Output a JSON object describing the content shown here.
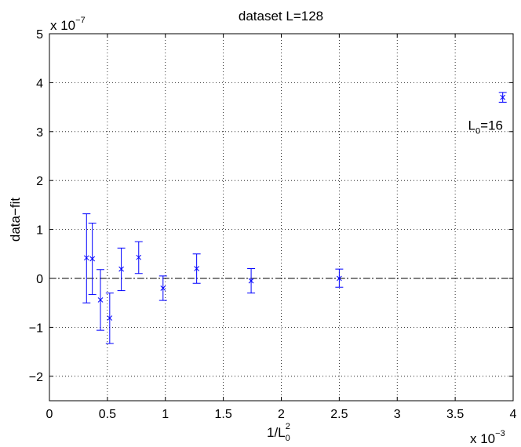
{
  "chart_data": {
    "type": "scatter",
    "title": "dataset L=128",
    "xlabel": {
      "text": "1/L",
      "sub": "0",
      "sup": "2"
    },
    "ylabel": "data−fit",
    "x_multiplier": {
      "base": "x 10",
      "exp": "−3"
    },
    "y_multiplier": {
      "base": "x 10",
      "exp": "−7"
    },
    "xlim": [
      0,
      4
    ],
    "ylim": [
      -2.5,
      5
    ],
    "xticks": [
      0,
      0.5,
      1,
      1.5,
      2,
      2.5,
      3,
      3.5,
      4
    ],
    "xtick_labels": [
      "0",
      "0.5",
      "1",
      "1.5",
      "2",
      "2.5",
      "3",
      "3.5",
      "4"
    ],
    "yticks": [
      -2,
      -1,
      0,
      1,
      2,
      3,
      4,
      5
    ],
    "ytick_labels": [
      "−2",
      "−1",
      "0",
      "1",
      "2",
      "3",
      "4",
      "5"
    ],
    "grid": true,
    "reference_line": {
      "y": 0,
      "style": "dash-dot",
      "color": "#000000"
    },
    "marker_color": "#0000ff",
    "marker": "x",
    "points": [
      {
        "x": 0.32,
        "y": 0.42,
        "err_lo": -0.5,
        "err_hi": 1.32
      },
      {
        "x": 0.37,
        "y": 0.4,
        "err_lo": -0.33,
        "err_hi": 1.13
      },
      {
        "x": 0.44,
        "y": -0.44,
        "err_lo": -1.06,
        "err_hi": 0.18
      },
      {
        "x": 0.52,
        "y": -0.81,
        "err_lo": -1.33,
        "err_hi": -0.3
      },
      {
        "x": 0.62,
        "y": 0.19,
        "err_lo": -0.25,
        "err_hi": 0.62
      },
      {
        "x": 0.77,
        "y": 0.43,
        "err_lo": 0.1,
        "err_hi": 0.75
      },
      {
        "x": 0.98,
        "y": -0.2,
        "err_lo": -0.45,
        "err_hi": 0.05
      },
      {
        "x": 1.27,
        "y": 0.2,
        "err_lo": -0.1,
        "err_hi": 0.5
      },
      {
        "x": 1.74,
        "y": -0.05,
        "err_lo": -0.3,
        "err_hi": 0.2
      },
      {
        "x": 2.5,
        "y": 0.0,
        "err_lo": -0.18,
        "err_hi": 0.19
      },
      {
        "x": 3.91,
        "y": 3.7,
        "err_lo": 3.6,
        "err_hi": 3.8
      }
    ],
    "annotation": {
      "text": "L",
      "sub": "0",
      "after": "=16",
      "x": 3.91,
      "y": 3.1
    }
  }
}
